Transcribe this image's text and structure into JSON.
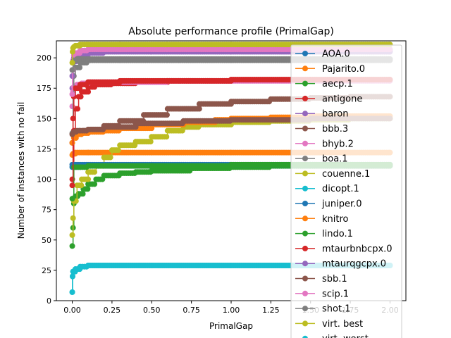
{
  "chart_data": {
    "type": "line",
    "title": "Absolute performance profile (PrimalGap)",
    "xlabel": "PrimalGap",
    "ylabel": "Number of instances with no fail",
    "xlim": [
      -0.1,
      2.1
    ],
    "ylim": [
      0,
      214
    ],
    "xticks": [
      0.0,
      0.25,
      0.5,
      0.75,
      1.0,
      1.25,
      1.5,
      1.75,
      2.0
    ],
    "xtick_labels": [
      "0.00",
      "0.25",
      "0.50",
      "0.75",
      "1.00",
      "1.25",
      "1.50",
      "1.75",
      "2.00"
    ],
    "yticks": [
      0,
      25,
      50,
      75,
      100,
      125,
      150,
      175,
      200
    ],
    "ytick_labels": [
      "0",
      "25",
      "50",
      "75",
      "100",
      "125",
      "150",
      "175",
      "200"
    ],
    "grid": false,
    "legend_position": "right",
    "series": [
      {
        "name": "AOA.0",
        "color": "#1f77b4",
        "x": [
          0.0,
          0.01,
          0.05,
          0.2,
          0.5,
          1.0,
          1.5,
          2.0
        ],
        "y": [
          110,
          110,
          111,
          111,
          111,
          111,
          111,
          111
        ]
      },
      {
        "name": "Pajarito.0",
        "color": "#ff7f0e",
        "x": [
          0.0,
          0.005,
          0.02,
          0.1,
          0.5,
          1.0,
          1.5,
          2.0
        ],
        "y": [
          120,
          121,
          122,
          122,
          122,
          122,
          122,
          122
        ]
      },
      {
        "name": "aecp.1",
        "color": "#2ca02c",
        "x": [
          0.0,
          0.005,
          0.01,
          0.02,
          0.04,
          0.07,
          0.1,
          0.15,
          0.2,
          0.3,
          0.4,
          0.5,
          0.75,
          1.0,
          1.25,
          1.5,
          1.75,
          2.0
        ],
        "y": [
          45,
          60,
          80,
          86,
          88,
          92,
          96,
          100,
          103,
          105,
          106,
          107,
          109,
          110,
          111,
          111,
          111,
          111
        ]
      },
      {
        "name": "antigone",
        "color": "#d62728",
        "x": [
          0.0,
          0.01,
          0.02,
          0.04,
          0.06,
          0.1,
          0.15,
          0.25,
          0.4,
          0.6,
          1.0,
          1.5,
          2.0
        ],
        "y": [
          100,
          140,
          158,
          168,
          172,
          176,
          178,
          179,
          180,
          181,
          182,
          182,
          182
        ]
      },
      {
        "name": "baron",
        "color": "#9467bd",
        "x": [
          0.0,
          0.005,
          0.01,
          0.03,
          0.06,
          0.1,
          0.2,
          0.5,
          1.0,
          1.5,
          2.0
        ],
        "y": [
          175,
          190,
          197,
          201,
          203,
          204,
          205,
          205,
          205,
          205,
          205
        ]
      },
      {
        "name": "bbb.3",
        "color": "#8c564b",
        "x": [
          0.0,
          0.01,
          0.03,
          0.07,
          0.12,
          0.2,
          0.3,
          0.45,
          0.6,
          0.8,
          1.0,
          1.25,
          1.5,
          1.75,
          2.0
        ],
        "y": [
          130,
          137,
          139,
          140,
          141,
          144,
          148,
          153,
          158,
          162,
          164,
          166,
          167,
          168,
          168
        ]
      },
      {
        "name": "bhyb.2",
        "color": "#e377c2",
        "x": [
          0.0,
          0.005,
          0.01,
          0.03,
          0.06,
          0.1,
          0.3,
          0.6,
          1.0,
          1.5,
          2.0
        ],
        "y": [
          160,
          172,
          176,
          178,
          179,
          180,
          180,
          181,
          181,
          181,
          181
        ]
      },
      {
        "name": "boa.1",
        "color": "#7f7f7f",
        "x": [
          0.0,
          0.005,
          0.01,
          0.02,
          0.05,
          0.1,
          0.3,
          0.6,
          1.0,
          1.5,
          2.0
        ],
        "y": [
          138,
          170,
          185,
          192,
          196,
          198,
          198,
          198,
          198,
          198,
          198
        ]
      },
      {
        "name": "couenne.1",
        "color": "#bcbd22",
        "x": [
          0.0,
          0.005,
          0.01,
          0.03,
          0.06,
          0.1,
          0.15,
          0.2,
          0.25,
          0.3,
          0.4,
          0.5,
          0.6,
          0.7,
          0.8,
          1.0,
          1.25,
          1.5,
          1.75,
          2.0
        ],
        "y": [
          54,
          68,
          82,
          95,
          100,
          106,
          111,
          118,
          124,
          128,
          131,
          135,
          140,
          143,
          145,
          147,
          148,
          149,
          150,
          150
        ]
      },
      {
        "name": "dicopt.1",
        "color": "#17becf",
        "x": [
          0.0,
          0.002,
          0.005,
          0.02,
          0.05,
          0.1,
          0.5,
          1.0,
          1.5,
          2.0
        ],
        "y": [
          7,
          20,
          24,
          26,
          28,
          29,
          29,
          29,
          29,
          29
        ]
      },
      {
        "name": "juniper.0",
        "color": "#1f77b4",
        "x": [
          0.0,
          0.01,
          0.1,
          0.5,
          1.0,
          1.5,
          2.0
        ],
        "y": [
          112,
          112,
          112,
          112,
          112,
          112,
          112
        ]
      },
      {
        "name": "knitro",
        "color": "#ff7f0e",
        "x": [
          0.0,
          0.01,
          0.03,
          0.06,
          0.1,
          0.2,
          0.3,
          0.5,
          0.7,
          0.9,
          1.0,
          1.25,
          1.5,
          1.75,
          2.0
        ],
        "y": [
          130,
          134,
          137,
          138,
          139,
          140,
          142,
          145,
          147,
          149,
          150,
          151,
          152,
          152,
          152
        ]
      },
      {
        "name": "lindo.1",
        "color": "#2ca02c",
        "x": [
          0.0,
          0.01,
          0.1,
          0.5,
          1.0,
          1.5,
          2.0
        ],
        "y": [
          84,
          110,
          111,
          111,
          112,
          112,
          112
        ]
      },
      {
        "name": "mtaurbnbcpx.0",
        "color": "#d62728",
        "x": [
          0.0,
          0.005,
          0.01,
          0.02,
          0.05,
          0.1,
          0.3,
          0.6,
          1.0,
          1.5,
          2.0
        ],
        "y": [
          95,
          150,
          168,
          175,
          178,
          180,
          181,
          181,
          182,
          182,
          182
        ]
      },
      {
        "name": "mtaurqgcpx.0",
        "color": "#9467bd",
        "x": [
          0.0,
          0.005,
          0.01,
          0.02,
          0.05,
          0.1,
          0.3,
          0.6,
          1.0,
          1.5,
          2.0
        ],
        "y": [
          185,
          196,
          200,
          203,
          205,
          206,
          206,
          206,
          206,
          206,
          206
        ]
      },
      {
        "name": "sbb.1",
        "color": "#8c564b",
        "x": [
          0.0,
          0.01,
          0.03,
          0.05,
          0.1,
          0.2,
          0.4,
          0.7,
          1.0,
          1.5,
          2.0
        ],
        "y": [
          137,
          139,
          140,
          140,
          141,
          143,
          146,
          148,
          149,
          150,
          150
        ]
      },
      {
        "name": "scip.1",
        "color": "#e377c2",
        "x": [
          0.0,
          0.002,
          0.005,
          0.01,
          0.02,
          0.05,
          0.1,
          0.3,
          0.6,
          1.0,
          1.5,
          2.0
        ],
        "y": [
          170,
          190,
          198,
          202,
          204,
          206,
          207,
          207,
          207,
          207,
          207,
          207
        ]
      },
      {
        "name": "shot.1",
        "color": "#7f7f7f",
        "x": [
          0.0,
          0.005,
          0.01,
          0.03,
          0.06,
          0.1,
          0.3,
          0.6,
          1.0,
          1.5,
          2.0
        ],
        "y": [
          190,
          196,
          198,
          199,
          199,
          199,
          199,
          199,
          199,
          199,
          199
        ]
      },
      {
        "name": "virt. best",
        "color": "#bcbd22",
        "x": [
          0.0,
          0.002,
          0.005,
          0.01,
          0.02,
          0.05,
          0.1,
          0.3,
          0.6,
          1.0,
          1.5,
          2.0
        ],
        "y": [
          196,
          205,
          208,
          209,
          210,
          211,
          211,
          211,
          211,
          211,
          211,
          211
        ]
      },
      {
        "name": "virt. worst",
        "color": "#17becf",
        "x": [
          0.0,
          0.002,
          0.005,
          0.02,
          0.05,
          0.1,
          0.5,
          1.0,
          1.5,
          2.0
        ],
        "y": [
          7,
          20,
          24,
          26,
          28,
          29,
          29,
          29,
          29,
          29
        ]
      }
    ]
  }
}
